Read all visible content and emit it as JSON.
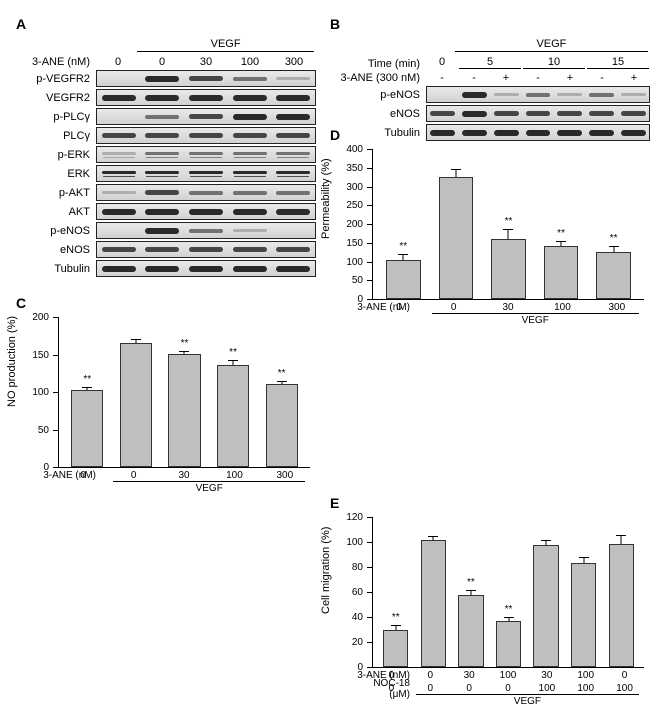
{
  "panels": {
    "A": {
      "label": "A",
      "treatment_header": "VEGF",
      "dose_label": "3-ANE (nM)",
      "doses": [
        "0",
        "0",
        "30",
        "100",
        "300"
      ],
      "rows": [
        {
          "name": "p-VEGFR2",
          "intensity": [
            0,
            4,
            3,
            2,
            1
          ]
        },
        {
          "name": "VEGFR2",
          "intensity": [
            4,
            4,
            4,
            4,
            4
          ]
        },
        {
          "name": "p-PLCγ",
          "intensity": [
            0,
            2,
            3,
            4,
            4
          ]
        },
        {
          "name": "PLCγ",
          "intensity": [
            3,
            3,
            3,
            3,
            3
          ]
        },
        {
          "name": "p-ERK",
          "intensity": [
            1,
            2,
            2,
            2,
            2
          ],
          "doublet": true
        },
        {
          "name": "ERK",
          "intensity": [
            4,
            4,
            4,
            4,
            4
          ],
          "doublet": true
        },
        {
          "name": "p-AKT",
          "intensity": [
            1,
            3,
            2,
            2,
            2
          ]
        },
        {
          "name": "AKT",
          "intensity": [
            4,
            4,
            4,
            4,
            4
          ]
        },
        {
          "name": "p-eNOS",
          "intensity": [
            0,
            4,
            2,
            1,
            0
          ]
        },
        {
          "name": "eNOS",
          "intensity": [
            3,
            3,
            3,
            3,
            3
          ]
        },
        {
          "name": "Tubulin",
          "intensity": [
            4,
            4,
            4,
            4,
            4
          ]
        }
      ]
    },
    "B": {
      "label": "B",
      "treatment_header": "VEGF",
      "time_label": "Time (min)",
      "compound_label": "3-ANE (300 nM)",
      "times": [
        "0",
        "5",
        "5",
        "10",
        "10",
        "15",
        "15"
      ],
      "time_groups": [
        "0",
        "5",
        "10",
        "15"
      ],
      "compound": [
        "-",
        "-",
        "+",
        "-",
        "+",
        "-",
        "+"
      ],
      "rows": [
        {
          "name": "p-eNOS",
          "intensity": [
            0,
            4,
            1,
            2,
            1,
            2,
            1
          ]
        },
        {
          "name": "eNOS",
          "intensity": [
            3,
            4,
            3,
            3,
            3,
            3,
            3
          ]
        },
        {
          "name": "Tubulin",
          "intensity": [
            4,
            4,
            4,
            4,
            4,
            4,
            4
          ]
        }
      ]
    },
    "C": {
      "label": "C",
      "ylab": "NO production (%)",
      "ymax": 200,
      "ystep": 50,
      "x_label": "3-ANE (nM)",
      "bracket_label": "VEGF",
      "bars": [
        {
          "x": "0",
          "val": 100,
          "err": 5,
          "sig": "**",
          "bracket": false
        },
        {
          "x": "0",
          "val": 163,
          "err": 6,
          "sig": "",
          "bracket": true
        },
        {
          "x": "30",
          "val": 148,
          "err": 6,
          "sig": "**",
          "bracket": true
        },
        {
          "x": "100",
          "val": 133,
          "err": 8,
          "sig": "**",
          "bracket": true
        },
        {
          "x": "300",
          "val": 108,
          "err": 6,
          "sig": "**",
          "bracket": true
        }
      ],
      "bar_color": "#bfbfbf"
    },
    "D": {
      "label": "D",
      "ylab": "Permeability (%)",
      "ymax": 400,
      "ystep": 50,
      "x_label": "3-ANE (nM)",
      "bracket_label": "VEGF",
      "bars": [
        {
          "x": "0",
          "val": 100,
          "err": 18,
          "sig": "**",
          "bracket": false
        },
        {
          "x": "0",
          "val": 320,
          "err": 25,
          "sig": "",
          "bracket": true
        },
        {
          "x": "30",
          "val": 155,
          "err": 30,
          "sig": "**",
          "bracket": true
        },
        {
          "x": "100",
          "val": 135,
          "err": 18,
          "sig": "**",
          "bracket": true
        },
        {
          "x": "300",
          "val": 120,
          "err": 20,
          "sig": "**",
          "bracket": true
        }
      ],
      "bar_color": "#bfbfbf"
    },
    "E": {
      "label": "E",
      "ylab": "Cell migration (%)",
      "ymax": 120,
      "ystep": 20,
      "x1_label": "3-ANE (nM)",
      "x2_label": "NOC-18 (μM)",
      "bracket_label": "VEGF",
      "bars": [
        {
          "x1": "0",
          "x2": "0",
          "val": 28,
          "err": 5,
          "sig": "**",
          "bracket": false
        },
        {
          "x1": "0",
          "x2": "0",
          "val": 100,
          "err": 4,
          "sig": "",
          "bracket": true
        },
        {
          "x1": "30",
          "x2": "0",
          "val": 56,
          "err": 5,
          "sig": "**",
          "bracket": true
        },
        {
          "x1": "100",
          "x2": "0",
          "val": 35,
          "err": 4,
          "sig": "**",
          "bracket": true
        },
        {
          "x1": "30",
          "x2": "100",
          "val": 96,
          "err": 5,
          "sig": "",
          "bracket": true
        },
        {
          "x1": "100",
          "x2": "100",
          "val": 82,
          "err": 5,
          "sig": "",
          "bracket": true
        },
        {
          "x1": "0",
          "x2": "100",
          "val": 97,
          "err": 8,
          "sig": "",
          "bracket": true
        }
      ],
      "bar_color": "#bfbfbf"
    }
  }
}
